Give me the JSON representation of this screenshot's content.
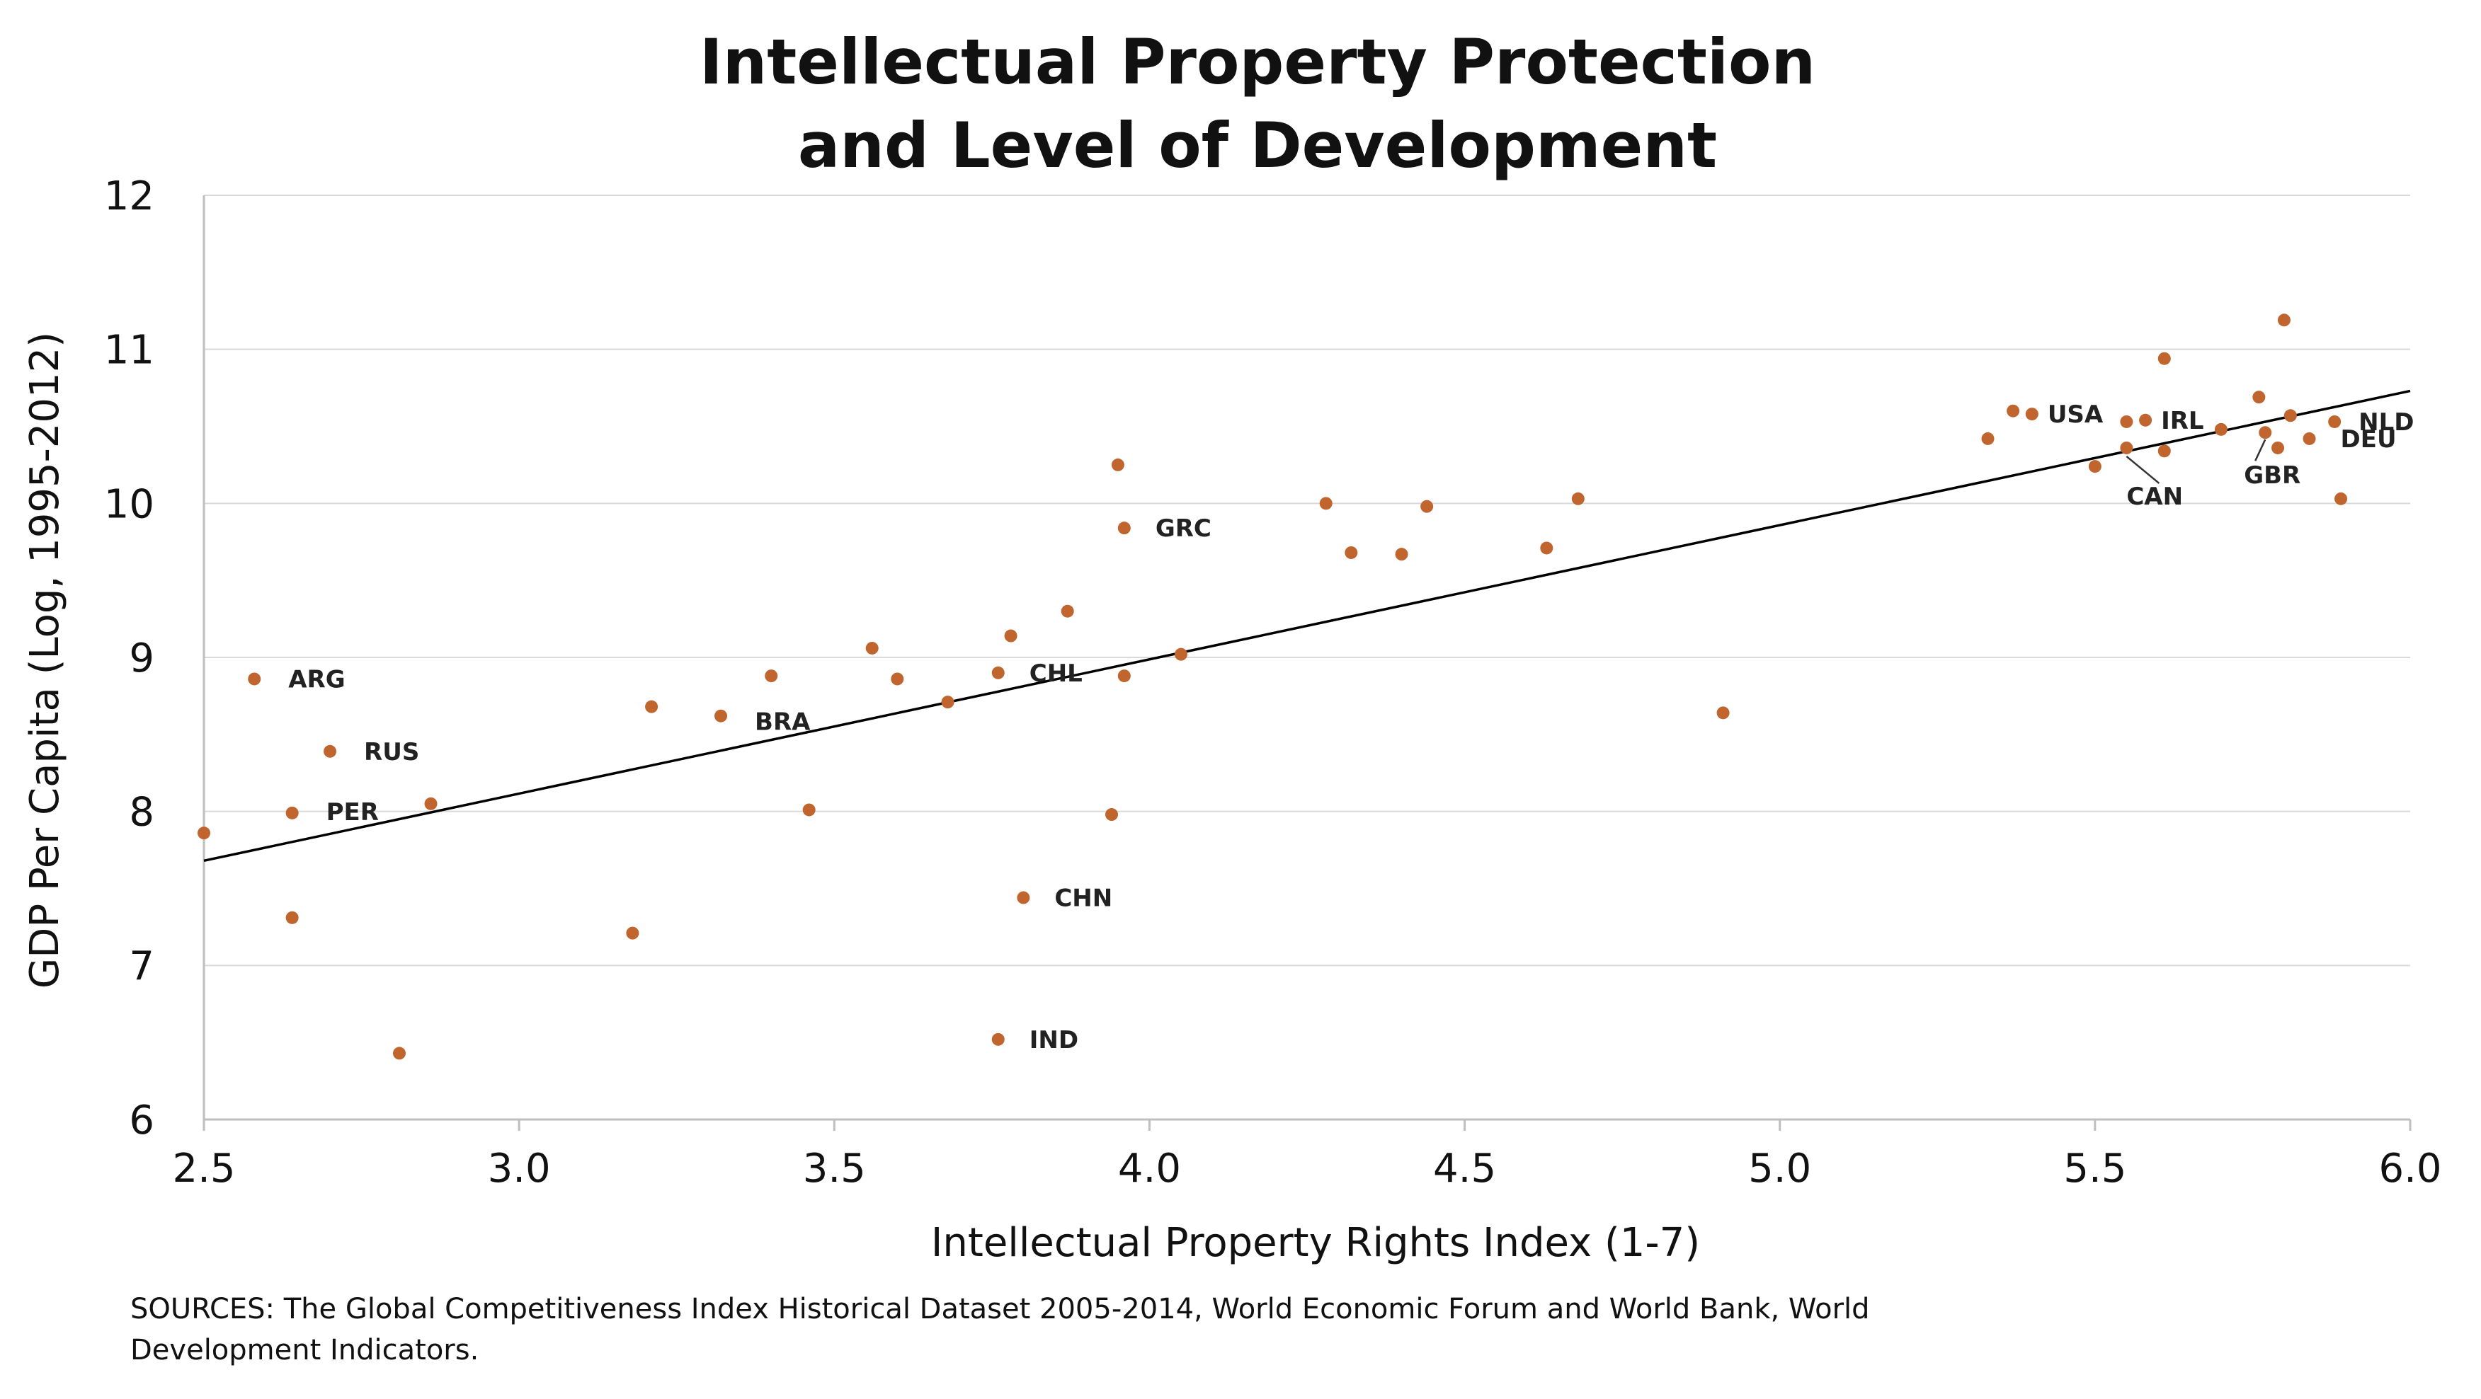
{
  "chart_data": {
    "type": "scatter",
    "title": [
      "Intellectual Property Protection",
      "and Level of Development"
    ],
    "xlabel": "Intellectual Property Rights Index (1-7)",
    "ylabel": "GDP Per Capita (Log, 1995-2012)",
    "xlim": [
      2.5,
      6.0
    ],
    "ylim": [
      6,
      12
    ],
    "xticks": [
      "2.5",
      "3.0",
      "3.5",
      "4.0",
      "4.5",
      "5.0",
      "5.5",
      "6.0"
    ],
    "yticks": [
      "6",
      "7",
      "8",
      "9",
      "10",
      "11",
      "12"
    ],
    "grid": true,
    "point_color": "#c0652e",
    "trendline": {
      "x": [
        2.5,
        6.0
      ],
      "y": [
        7.68,
        10.73
      ]
    },
    "points": [
      {
        "x": 2.5,
        "y": 7.86
      },
      {
        "x": 2.58,
        "y": 8.86,
        "label": "ARG"
      },
      {
        "x": 2.64,
        "y": 7.99,
        "label": "PER"
      },
      {
        "x": 2.64,
        "y": 7.31
      },
      {
        "x": 2.7,
        "y": 8.39,
        "label": "RUS"
      },
      {
        "x": 2.81,
        "y": 6.43
      },
      {
        "x": 2.86,
        "y": 8.05
      },
      {
        "x": 3.18,
        "y": 7.21
      },
      {
        "x": 3.21,
        "y": 8.68
      },
      {
        "x": 3.32,
        "y": 8.62,
        "label": "BRA"
      },
      {
        "x": 3.4,
        "y": 8.88
      },
      {
        "x": 3.46,
        "y": 8.01
      },
      {
        "x": 3.56,
        "y": 9.06
      },
      {
        "x": 3.6,
        "y": 8.86
      },
      {
        "x": 3.68,
        "y": 8.71
      },
      {
        "x": 3.76,
        "y": 8.9,
        "label": "CHL"
      },
      {
        "x": 3.76,
        "y": 6.52,
        "label": "IND"
      },
      {
        "x": 3.78,
        "y": 9.14
      },
      {
        "x": 3.8,
        "y": 7.44,
        "label": "CHN"
      },
      {
        "x": 3.87,
        "y": 9.3
      },
      {
        "x": 3.94,
        "y": 7.98
      },
      {
        "x": 3.95,
        "y": 10.25
      },
      {
        "x": 3.96,
        "y": 9.84,
        "label": "GRC"
      },
      {
        "x": 3.96,
        "y": 8.88
      },
      {
        "x": 4.05,
        "y": 9.02
      },
      {
        "x": 4.28,
        "y": 10.0
      },
      {
        "x": 4.32,
        "y": 9.68
      },
      {
        "x": 4.4,
        "y": 9.67
      },
      {
        "x": 4.44,
        "y": 9.98
      },
      {
        "x": 4.63,
        "y": 9.71
      },
      {
        "x": 4.68,
        "y": 10.03
      },
      {
        "x": 4.91,
        "y": 8.64
      },
      {
        "x": 5.33,
        "y": 10.42
      },
      {
        "x": 5.37,
        "y": 10.6
      },
      {
        "x": 5.4,
        "y": 10.58,
        "label": "USA"
      },
      {
        "x": 5.5,
        "y": 10.24
      },
      {
        "x": 5.55,
        "y": 10.36,
        "label": "CAN"
      },
      {
        "x": 5.55,
        "y": 10.53
      },
      {
        "x": 5.58,
        "y": 10.54,
        "label": "IRL"
      },
      {
        "x": 5.61,
        "y": 10.94
      },
      {
        "x": 5.61,
        "y": 10.34
      },
      {
        "x": 5.7,
        "y": 10.48
      },
      {
        "x": 5.76,
        "y": 10.69
      },
      {
        "x": 5.77,
        "y": 10.46,
        "label": "GBR"
      },
      {
        "x": 5.79,
        "y": 10.36
      },
      {
        "x": 5.8,
        "y": 11.19
      },
      {
        "x": 5.81,
        "y": 10.57
      },
      {
        "x": 5.84,
        "y": 10.42,
        "label": "DEU"
      },
      {
        "x": 5.88,
        "y": 10.53,
        "label": "NLD"
      },
      {
        "x": 5.89,
        "y": 10.03
      }
    ]
  },
  "source_lines": [
    "SOURCES: The Global Competitiveness Index Historical Dataset 2005-2014, World Economic Forum and World Bank, World",
    "Development Indicators."
  ]
}
